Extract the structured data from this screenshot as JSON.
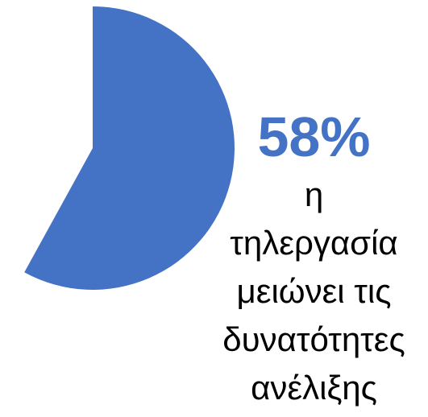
{
  "chart_data": {
    "type": "pie",
    "slices": [
      {
        "label": "η τηλεργασία μειώνει τις δυνατότητες ανέλιξης",
        "value": 58,
        "color": "#4472C4",
        "visible": true
      },
      {
        "label": "",
        "value": 42,
        "color": "#ffffff",
        "visible": false
      }
    ],
    "value_label": "58%",
    "caption_lines": [
      "η",
      "τηλεργασία",
      "μειώνει τις",
      "δυνατότητες",
      "ανέλιξης"
    ],
    "accent_color": "#4472C4"
  }
}
